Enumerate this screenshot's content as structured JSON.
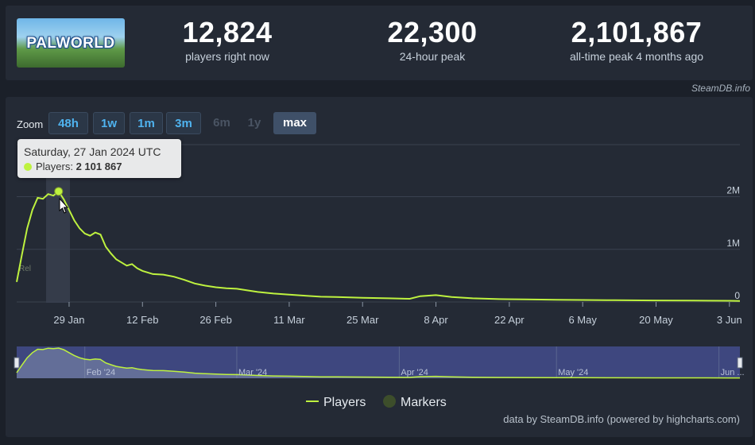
{
  "header": {
    "logo_text": "PALWORLD",
    "stats": [
      {
        "value": "12,824",
        "label": "players right now"
      },
      {
        "value": "22,300",
        "label": "24-hour peak"
      },
      {
        "value": "2,101,867",
        "label": "all-time peak 4 months ago"
      }
    ],
    "credit": "SteamDB.info"
  },
  "zoom": {
    "label": "Zoom",
    "buttons": [
      {
        "label": "48h",
        "state": "enabled"
      },
      {
        "label": "1w",
        "state": "enabled"
      },
      {
        "label": "1m",
        "state": "enabled"
      },
      {
        "label": "3m",
        "state": "enabled"
      },
      {
        "label": "6m",
        "state": "disabled"
      },
      {
        "label": "1y",
        "state": "disabled"
      },
      {
        "label": "max",
        "state": "selected"
      }
    ]
  },
  "tooltip": {
    "date": "Saturday, 27 Jan 2024 UTC",
    "series_label": "Players:",
    "value": "2 101 867"
  },
  "chart_data": {
    "type": "line",
    "x": [
      "2024-01-19",
      "2024-01-20",
      "2024-01-21",
      "2024-01-22",
      "2024-01-23",
      "2024-01-24",
      "2024-01-25",
      "2024-01-26",
      "2024-01-27",
      "2024-01-28",
      "2024-01-29",
      "2024-01-30",
      "2024-01-31",
      "2024-02-01",
      "2024-02-02",
      "2024-02-03",
      "2024-02-04",
      "2024-02-05",
      "2024-02-06",
      "2024-02-07",
      "2024-02-08",
      "2024-02-09",
      "2024-02-10",
      "2024-02-11",
      "2024-02-12",
      "2024-02-13",
      "2024-02-14",
      "2024-02-16",
      "2024-02-18",
      "2024-02-20",
      "2024-02-22",
      "2024-02-24",
      "2024-02-26",
      "2024-02-28",
      "2024-03-01",
      "2024-03-03",
      "2024-03-05",
      "2024-03-08",
      "2024-03-11",
      "2024-03-14",
      "2024-03-17",
      "2024-03-20",
      "2024-03-25",
      "2024-03-30",
      "2024-04-03",
      "2024-04-05",
      "2024-04-08",
      "2024-04-11",
      "2024-04-15",
      "2024-04-20",
      "2024-04-25",
      "2024-05-01",
      "2024-05-06",
      "2024-05-12",
      "2024-05-20",
      "2024-05-27",
      "2024-06-03",
      "2024-06-05"
    ],
    "series": [
      {
        "name": "Players",
        "values": [
          380000,
          900000,
          1400000,
          1750000,
          1980000,
          1960000,
          2050000,
          2020000,
          2101867,
          1950000,
          1750000,
          1550000,
          1400000,
          1300000,
          1260000,
          1320000,
          1280000,
          1050000,
          920000,
          810000,
          750000,
          690000,
          720000,
          640000,
          590000,
          560000,
          530000,
          520000,
          480000,
          420000,
          350000,
          310000,
          280000,
          260000,
          250000,
          220000,
          190000,
          160000,
          140000,
          120000,
          100000,
          95000,
          80000,
          70000,
          60000,
          110000,
          130000,
          95000,
          70000,
          55000,
          50000,
          42000,
          38000,
          33000,
          28000,
          25000,
          22000,
          20000
        ]
      }
    ],
    "x_tick_labels": [
      "29 Jan",
      "12 Feb",
      "26 Feb",
      "11 Mar",
      "25 Mar",
      "8 Apr",
      "22 Apr",
      "6 May",
      "20 May",
      "3 Jun"
    ],
    "y_tick_labels": [
      "0",
      "1M",
      "2M"
    ],
    "y_ticks": [
      0,
      1000000,
      2000000
    ],
    "ylim": [
      0,
      2990000
    ],
    "navigator_labels": [
      "Feb '24",
      "Mar '24",
      "Apr '24",
      "May '24",
      "Jun ..."
    ],
    "legend": [
      {
        "label": "Players",
        "color": "#bef23f"
      },
      {
        "label": "Markers",
        "color": "#3d4e2b"
      }
    ],
    "legend_position": "bottom-center",
    "grid": true,
    "highlighted_point": {
      "x": "2024-01-27",
      "y": 2101867
    },
    "marker_label": "Rel"
  },
  "colors": {
    "line": "#bef23f",
    "background": "#242a35",
    "navigator_mask": "#404a86"
  },
  "footer": {
    "credit": "data by SteamDB.info (powered by highcharts.com)"
  }
}
